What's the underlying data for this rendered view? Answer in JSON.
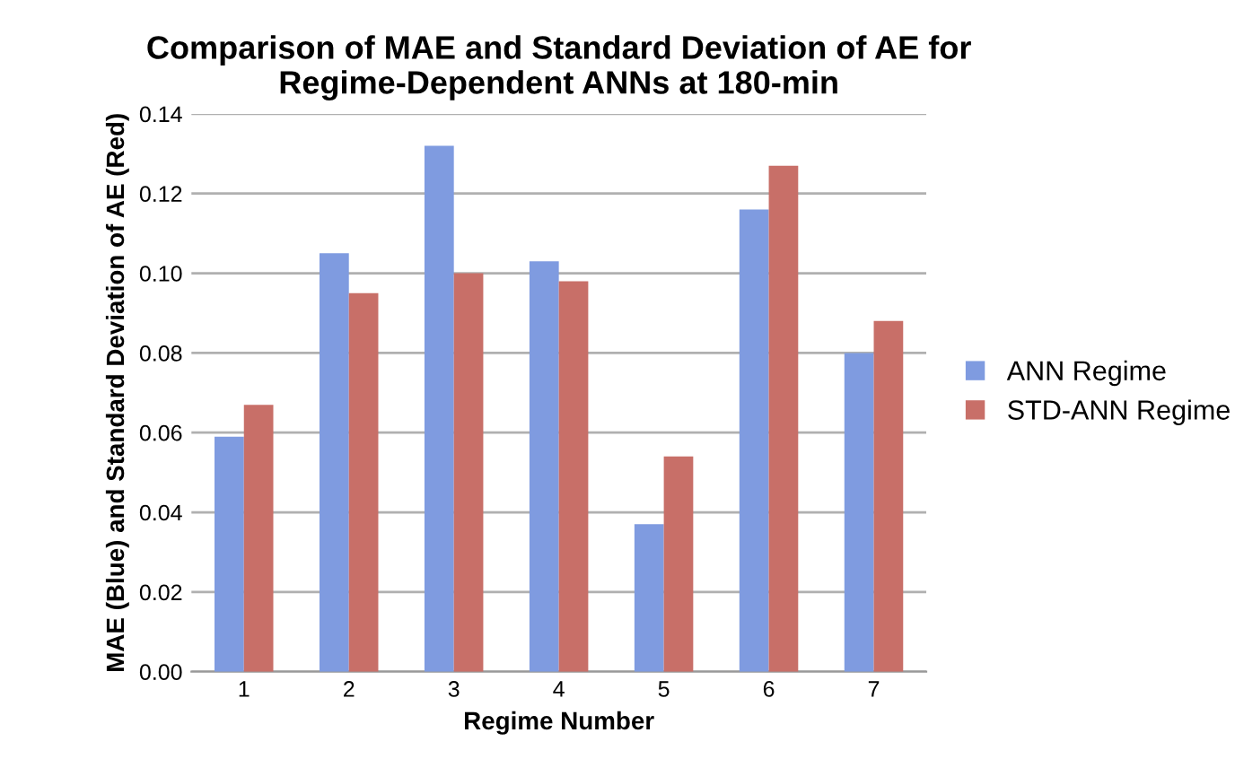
{
  "chart_data": {
    "type": "bar",
    "title": "Comparison of MAE and Standard Deviation of AE for Regime-Dependent ANNs at 180-min",
    "xlabel": "Regime Number",
    "ylabel": "MAE (Blue) and Standard Deviation of AE (Red)",
    "categories": [
      "1",
      "2",
      "3",
      "4",
      "5",
      "6",
      "7"
    ],
    "series": [
      {
        "name": "ANN Regime",
        "color": "#7f9be0",
        "values": [
          0.059,
          0.105,
          0.132,
          0.103,
          0.037,
          0.116,
          0.08
        ]
      },
      {
        "name": "STD-ANN Regime",
        "color": "#c86f68",
        "values": [
          0.067,
          0.095,
          0.1,
          0.098,
          0.054,
          0.127,
          0.088
        ]
      }
    ],
    "ylim": [
      0,
      0.14
    ],
    "yticks": [
      {
        "value": 0,
        "label": "0.00"
      },
      {
        "value": 0.02,
        "label": "0.02"
      },
      {
        "value": 0.04,
        "label": "0.04"
      },
      {
        "value": 0.06,
        "label": "0.06"
      },
      {
        "value": 0.08,
        "label": "0.08"
      },
      {
        "value": 0.1,
        "label": "0.10"
      },
      {
        "value": 0.12,
        "label": "0.12"
      },
      {
        "value": 0.14,
        "label": "0.14"
      }
    ],
    "grid": "y",
    "legend": "right"
  }
}
